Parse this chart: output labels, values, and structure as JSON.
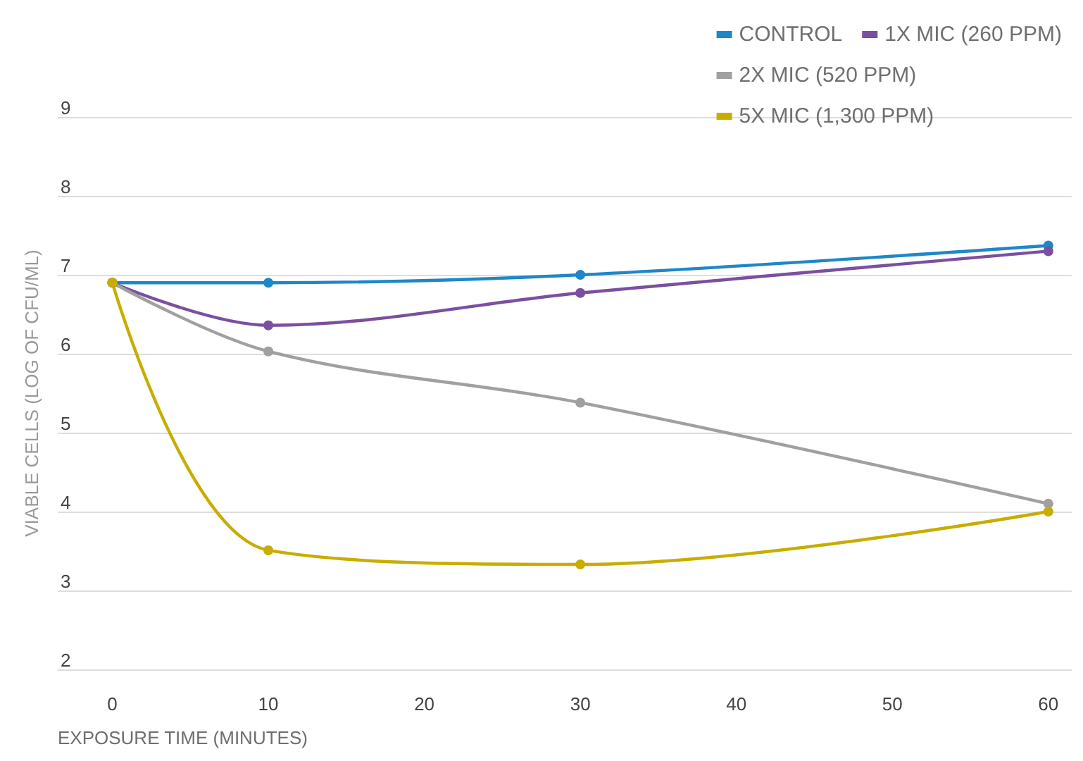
{
  "chart_data": {
    "type": "line",
    "xlabel": "EXPOSURE TIME (MINUTES)",
    "ylabel": "VIABLE CELLS (LOG OF CFU/ML)",
    "x": [
      0,
      10,
      30,
      60
    ],
    "series": [
      {
        "name": "CONTROL",
        "color": "#1f87c8",
        "values": [
          6.9,
          6.9,
          7.0,
          7.37
        ]
      },
      {
        "name": "1X MIC (260 PPM)",
        "color": "#7b4fa0",
        "values": [
          6.9,
          6.36,
          6.77,
          7.3
        ]
      },
      {
        "name": "2X MIC (520 PPM)",
        "color": "#a0a0a0",
        "values": [
          6.9,
          6.03,
          5.38,
          4.1
        ]
      },
      {
        "name": "5X MIC (1,300 PPM)",
        "color": "#c8ad00",
        "values": [
          6.9,
          3.51,
          3.33,
          4.0
        ]
      }
    ],
    "xlim": [
      -3.5,
      61.5
    ],
    "xticks": [
      0,
      10,
      20,
      30,
      40,
      50,
      60
    ],
    "ylim": [
      2,
      9
    ],
    "yticks": [
      2,
      3,
      4,
      5,
      6,
      7,
      8,
      9
    ],
    "grid": "y",
    "legend": "top right",
    "marker": "circle",
    "line_style": "solid"
  }
}
